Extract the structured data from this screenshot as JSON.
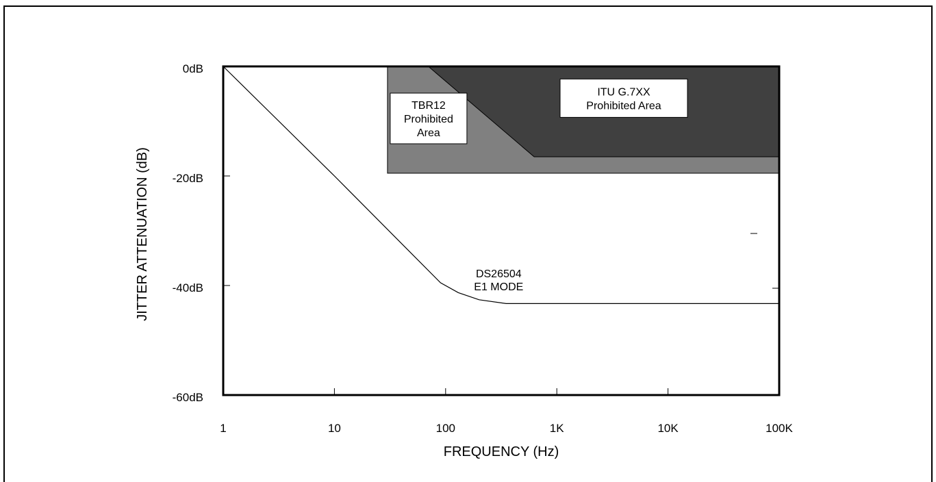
{
  "chart_data": {
    "type": "line",
    "title": "",
    "xlabel": "FREQUENCY (Hz)",
    "ylabel": "JITTER ATTENUATION (dB)",
    "xscale": "log",
    "xlim": [
      1,
      100000
    ],
    "ylim": [
      -60,
      0
    ],
    "x_ticks": [
      1,
      10,
      100,
      1000,
      10000,
      100000
    ],
    "x_tick_labels": [
      "1",
      "10",
      "100",
      "1K",
      "10K",
      "100K"
    ],
    "y_ticks": [
      0,
      -20,
      -40,
      -60
    ],
    "y_tick_labels": [
      "0dB",
      "-20dB",
      "-40dB",
      "-60dB"
    ],
    "grid": false,
    "series": [
      {
        "name": "DS26504 E1 MODE",
        "x": [
          1,
          10,
          90,
          130,
          200,
          350,
          100000
        ],
        "y": [
          0,
          -20,
          -39.5,
          -41.3,
          -42.6,
          -43.3,
          -43.3
        ]
      }
    ],
    "regions": [
      {
        "name": "TBR12 Prohibited Area",
        "label_lines": [
          "TBR12",
          "Prohibited",
          "Area"
        ],
        "color": "#808080",
        "polygon": [
          [
            30,
            0
          ],
          [
            100000,
            0
          ],
          [
            100000,
            -19.5
          ],
          [
            30,
            -19.5
          ]
        ]
      },
      {
        "name": "ITU G.7XX Prohibited Area",
        "label_lines": [
          "ITU G.7XX",
          "Prohibited Area"
        ],
        "color": "#404040",
        "polygon": [
          [
            70,
            0
          ],
          [
            100000,
            0
          ],
          [
            100000,
            -16.5
          ],
          [
            625,
            -16.5
          ]
        ]
      }
    ],
    "annotations": [
      {
        "lines": [
          "DS26504",
          "E1 MODE"
        ],
        "x": 300,
        "y": -38.5
      }
    ]
  }
}
